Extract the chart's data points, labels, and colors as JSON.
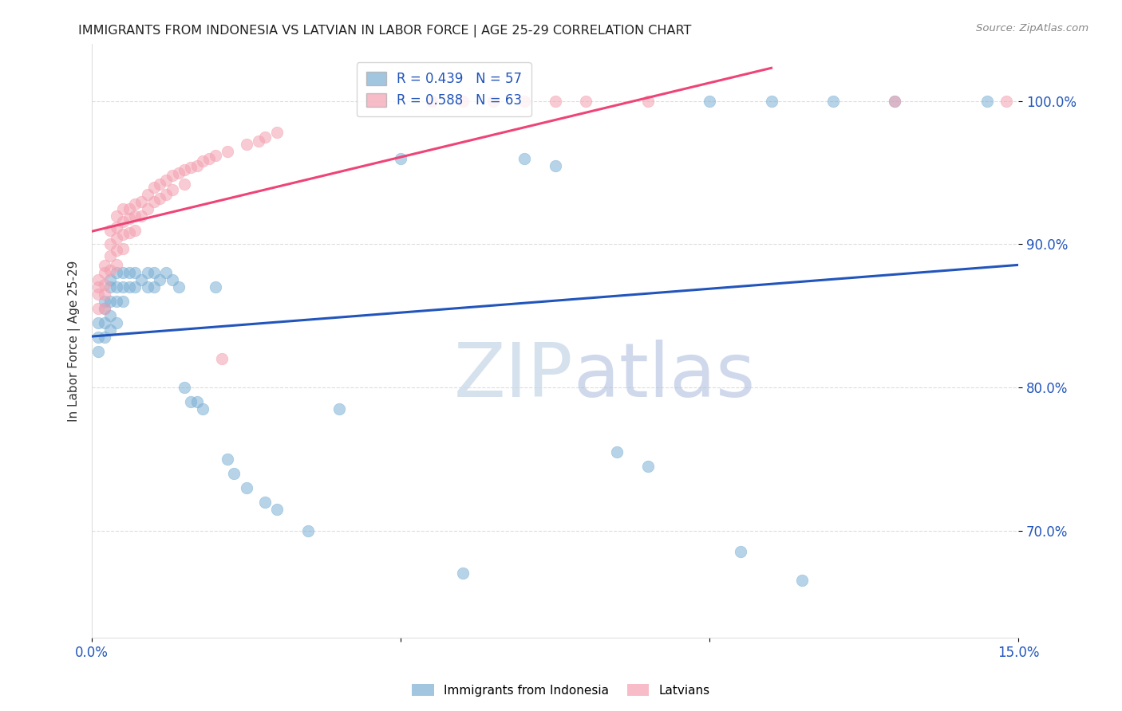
{
  "title": "IMMIGRANTS FROM INDONESIA VS LATVIAN IN LABOR FORCE | AGE 25-29 CORRELATION CHART",
  "source": "Source: ZipAtlas.com",
  "ylabel": "In Labor Force | Age 25-29",
  "xlim": [
    0.0,
    0.15
  ],
  "ylim": [
    0.625,
    1.04
  ],
  "xticks": [
    0.0,
    0.05,
    0.1,
    0.15
  ],
  "xticklabels": [
    "0.0%",
    "",
    "",
    "15.0%"
  ],
  "yticks": [
    0.7,
    0.8,
    0.9,
    1.0
  ],
  "yticklabels": [
    "70.0%",
    "80.0%",
    "90.0%",
    "100.0%"
  ],
  "R_blue": 0.439,
  "N_blue": 57,
  "R_pink": 0.588,
  "N_pink": 63,
  "blue_color": "#7BAFD4",
  "pink_color": "#F4A0B0",
  "blue_line_color": "#2255BB",
  "pink_line_color": "#EE4477",
  "indonesia_x": [
    0.001,
    0.001,
    0.001,
    0.002,
    0.002,
    0.002,
    0.002,
    0.003,
    0.003,
    0.003,
    0.003,
    0.003,
    0.004,
    0.004,
    0.004,
    0.004,
    0.005,
    0.005,
    0.005,
    0.006,
    0.006,
    0.007,
    0.007,
    0.008,
    0.009,
    0.009,
    0.01,
    0.01,
    0.011,
    0.012,
    0.013,
    0.014,
    0.015,
    0.016,
    0.017,
    0.018,
    0.02,
    0.022,
    0.023,
    0.025,
    0.028,
    0.03,
    0.035,
    0.04,
    0.05,
    0.06,
    0.07,
    0.075,
    0.085,
    0.09,
    0.1,
    0.105,
    0.11,
    0.115,
    0.12,
    0.13,
    0.145
  ],
  "indonesia_y": [
    0.845,
    0.835,
    0.825,
    0.86,
    0.855,
    0.845,
    0.835,
    0.875,
    0.87,
    0.86,
    0.85,
    0.84,
    0.88,
    0.87,
    0.86,
    0.845,
    0.88,
    0.87,
    0.86,
    0.88,
    0.87,
    0.88,
    0.87,
    0.875,
    0.88,
    0.87,
    0.88,
    0.87,
    0.875,
    0.88,
    0.875,
    0.87,
    0.8,
    0.79,
    0.79,
    0.785,
    0.87,
    0.75,
    0.74,
    0.73,
    0.72,
    0.715,
    0.7,
    0.785,
    0.96,
    0.67,
    0.96,
    0.955,
    0.755,
    0.745,
    1.0,
    0.685,
    1.0,
    0.665,
    1.0,
    1.0,
    1.0
  ],
  "latvian_x": [
    0.001,
    0.001,
    0.001,
    0.001,
    0.002,
    0.002,
    0.002,
    0.002,
    0.002,
    0.003,
    0.003,
    0.003,
    0.003,
    0.004,
    0.004,
    0.004,
    0.004,
    0.004,
    0.005,
    0.005,
    0.005,
    0.005,
    0.006,
    0.006,
    0.006,
    0.007,
    0.007,
    0.007,
    0.008,
    0.008,
    0.009,
    0.009,
    0.01,
    0.01,
    0.011,
    0.011,
    0.012,
    0.012,
    0.013,
    0.013,
    0.014,
    0.015,
    0.015,
    0.016,
    0.017,
    0.018,
    0.019,
    0.02,
    0.021,
    0.022,
    0.025,
    0.027,
    0.028,
    0.03,
    0.055,
    0.06,
    0.065,
    0.07,
    0.075,
    0.08,
    0.09,
    0.13,
    0.148
  ],
  "latvian_y": [
    0.875,
    0.87,
    0.865,
    0.855,
    0.885,
    0.88,
    0.872,
    0.865,
    0.855,
    0.91,
    0.9,
    0.892,
    0.882,
    0.92,
    0.912,
    0.904,
    0.896,
    0.886,
    0.925,
    0.916,
    0.907,
    0.897,
    0.925,
    0.918,
    0.908,
    0.928,
    0.92,
    0.91,
    0.93,
    0.92,
    0.935,
    0.925,
    0.94,
    0.93,
    0.942,
    0.932,
    0.945,
    0.935,
    0.948,
    0.938,
    0.95,
    0.952,
    0.942,
    0.954,
    0.955,
    0.958,
    0.96,
    0.962,
    0.82,
    0.965,
    0.97,
    0.972,
    0.975,
    0.978,
    1.0,
    1.0,
    1.0,
    1.0,
    1.0,
    1.0,
    1.0,
    1.0,
    1.0
  ],
  "watermark_zip": "ZIP",
  "watermark_atlas": "atlas",
  "background_color": "#FFFFFF",
  "grid_color": "#DDDDDD"
}
